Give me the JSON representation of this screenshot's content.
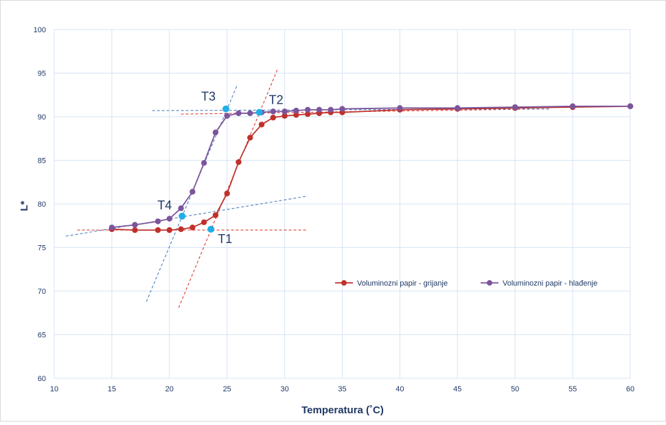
{
  "chart_data": {
    "type": "line",
    "title": "",
    "xlabel": "Temperatura (˚C)",
    "ylabel": "L*",
    "xlim": [
      10,
      60
    ],
    "ylim": [
      60,
      100
    ],
    "xticks": [
      10,
      15,
      20,
      25,
      30,
      35,
      40,
      45,
      50,
      55,
      60
    ],
    "yticks": [
      60,
      65,
      70,
      75,
      80,
      85,
      90,
      95,
      100
    ],
    "grid": "on",
    "legend_position": "right",
    "series": [
      {
        "name": "Voluminozni papir - grijanje",
        "color": "#c0312b",
        "x": [
          15,
          17,
          19,
          20,
          21,
          22,
          23,
          24,
          25,
          26,
          27,
          28,
          29,
          30,
          31,
          32,
          33,
          34,
          35,
          40,
          45,
          50,
          55,
          60
        ],
        "y": [
          77.1,
          77.0,
          77.0,
          77.0,
          77.1,
          77.3,
          77.9,
          78.7,
          81.2,
          84.8,
          87.6,
          89.1,
          89.9,
          90.1,
          90.2,
          90.3,
          90.4,
          90.5,
          90.5,
          90.8,
          90.9,
          91.0,
          91.1,
          91.2
        ]
      },
      {
        "name": "Voluminozni papir - hlađenje",
        "color": "#7b559c",
        "x": [
          15,
          17,
          19,
          20,
          21,
          22,
          23,
          24,
          25,
          26,
          27,
          28,
          29,
          30,
          31,
          32,
          33,
          34,
          35,
          40,
          45,
          50,
          55,
          60
        ],
        "y": [
          77.3,
          77.6,
          78.0,
          78.3,
          79.5,
          81.4,
          84.7,
          88.2,
          90.1,
          90.4,
          90.4,
          90.5,
          90.6,
          90.6,
          90.7,
          90.8,
          90.8,
          90.8,
          90.9,
          91.0,
          91.0,
          91.1,
          91.2,
          91.2
        ]
      }
    ],
    "tangent_lines": [
      {
        "color": "#e03a2f",
        "x": [
          12,
          32
        ],
        "y": [
          77.0,
          77.0
        ]
      },
      {
        "color": "#e03a2f",
        "x": [
          21,
          53
        ],
        "y": [
          90.3,
          90.9
        ]
      },
      {
        "color": "#e03a2f",
        "x": [
          20.8,
          29.4
        ],
        "y": [
          68.1,
          95.5
        ]
      },
      {
        "color": "#4a7dc0",
        "x": [
          11,
          32
        ],
        "y": [
          76.3,
          80.9
        ]
      },
      {
        "color": "#4a7dc0",
        "x": [
          18.5,
          53
        ],
        "y": [
          90.7,
          90.9
        ]
      },
      {
        "color": "#4a7dc0",
        "x": [
          18,
          25.9
        ],
        "y": [
          68.8,
          93.7
        ]
      }
    ],
    "markers": [
      {
        "label": "T1",
        "x": 23.6,
        "y": 77.1,
        "color": "#21aee6"
      },
      {
        "label": "T2",
        "x": 27.8,
        "y": 90.5,
        "color": "#21aee6"
      },
      {
        "label": "T3",
        "x": 24.9,
        "y": 90.9,
        "color": "#21aee6"
      },
      {
        "label": "T4",
        "x": 21.1,
        "y": 78.6,
        "color": "#21aee6"
      }
    ]
  }
}
